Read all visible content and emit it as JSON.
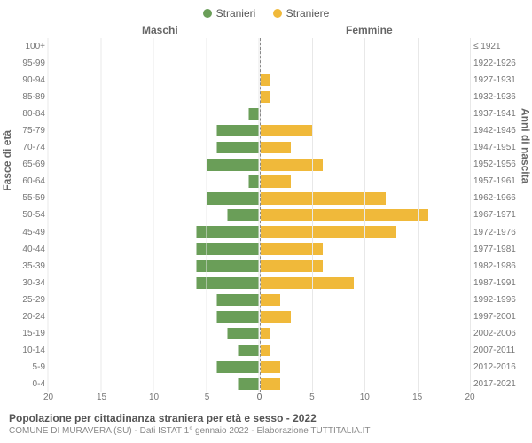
{
  "legend": {
    "male": {
      "label": "Stranieri",
      "color": "#6a9e58"
    },
    "female": {
      "label": "Straniere",
      "color": "#f0b93a"
    }
  },
  "gender_labels": {
    "male": "Maschi",
    "female": "Femmine"
  },
  "y_axis": {
    "left_title": "Fasce di età",
    "right_title": "Anni di nascita"
  },
  "age_bands": [
    "100+",
    "95-99",
    "90-94",
    "85-89",
    "80-84",
    "75-79",
    "70-74",
    "65-69",
    "60-64",
    "55-59",
    "50-54",
    "45-49",
    "40-44",
    "35-39",
    "30-34",
    "25-29",
    "20-24",
    "15-19",
    "10-14",
    "5-9",
    "0-4"
  ],
  "birth_bands": [
    "≤ 1921",
    "1922-1926",
    "1927-1931",
    "1932-1936",
    "1937-1941",
    "1942-1946",
    "1947-1951",
    "1952-1956",
    "1957-1961",
    "1962-1966",
    "1967-1971",
    "1972-1976",
    "1977-1981",
    "1982-1986",
    "1987-1991",
    "1992-1996",
    "1997-2001",
    "2002-2006",
    "2007-2011",
    "2012-2016",
    "2017-2021"
  ],
  "x_axis": {
    "max": 20,
    "ticks": [
      0,
      5,
      10,
      15,
      20
    ]
  },
  "data": {
    "male": [
      0,
      0,
      0,
      0,
      1,
      4,
      4,
      5,
      1,
      5,
      3,
      6,
      6,
      6,
      6,
      4,
      4,
      3,
      2,
      4,
      2
    ],
    "female": [
      0,
      0,
      1,
      1,
      0,
      5,
      3,
      6,
      3,
      12,
      16,
      13,
      6,
      6,
      9,
      2,
      3,
      1,
      1,
      2,
      2
    ]
  },
  "style": {
    "background": "#ffffff",
    "grid_color": "#e8e8e8",
    "center_line_color": "#888888",
    "text_muted": "#777777",
    "bar_height_pct": 70
  },
  "footer": {
    "title": "Popolazione per cittadinanza straniera per età e sesso - 2022",
    "subtitle": "COMUNE DI MURAVERA (SU) - Dati ISTAT 1° gennaio 2022 - Elaborazione TUTTITALIA.IT"
  }
}
